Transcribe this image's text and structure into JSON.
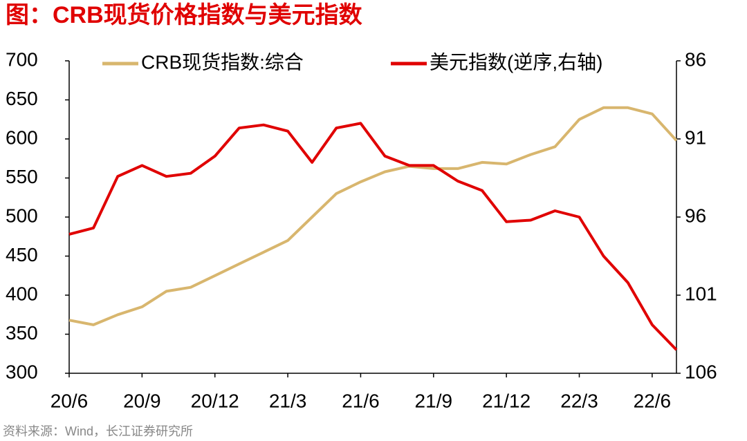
{
  "chart_data": {
    "type": "line",
    "title": "图：CRB现货价格指数与美元指数",
    "source": "资料来源：Wind，长江证券研究所",
    "categories": [
      "20/6",
      null,
      null,
      "20/9",
      null,
      null,
      "20/12",
      null,
      null,
      "21/3",
      null,
      null,
      "21/6",
      null,
      null,
      "21/9",
      null,
      null,
      "21/12",
      null,
      null,
      "22/3",
      null,
      null,
      "22/6",
      null
    ],
    "series": [
      {
        "name": "CRB现货指数:综合",
        "color": "#d8b66e",
        "values": [
          368,
          362,
          375,
          385,
          405,
          410,
          425,
          440,
          455,
          470,
          500,
          530,
          545,
          558,
          565,
          562,
          562,
          570,
          568,
          580,
          590,
          625,
          640,
          640,
          632,
          598
        ]
      },
      {
        "name": "美元指数(逆序,右轴)",
        "color": "#e00000",
        "axis": "y2",
        "values": [
          97.1,
          96.7,
          93.4,
          92.7,
          93.4,
          93.2,
          92.1,
          90.3,
          90.1,
          90.5,
          92.5,
          90.3,
          90.0,
          92.1,
          92.7,
          92.7,
          93.7,
          94.3,
          96.3,
          96.2,
          95.6,
          96.0,
          98.5,
          100.2,
          102.9,
          104.5
        ]
      }
    ],
    "ylim": [
      300,
      700
    ],
    "yticks": [
      300,
      350,
      400,
      450,
      500,
      550,
      600,
      650,
      700
    ],
    "y2lim": [
      106,
      86
    ],
    "y2ticks": [
      86,
      91,
      96,
      101,
      106
    ],
    "y2_reversed": true,
    "legend": "top"
  }
}
